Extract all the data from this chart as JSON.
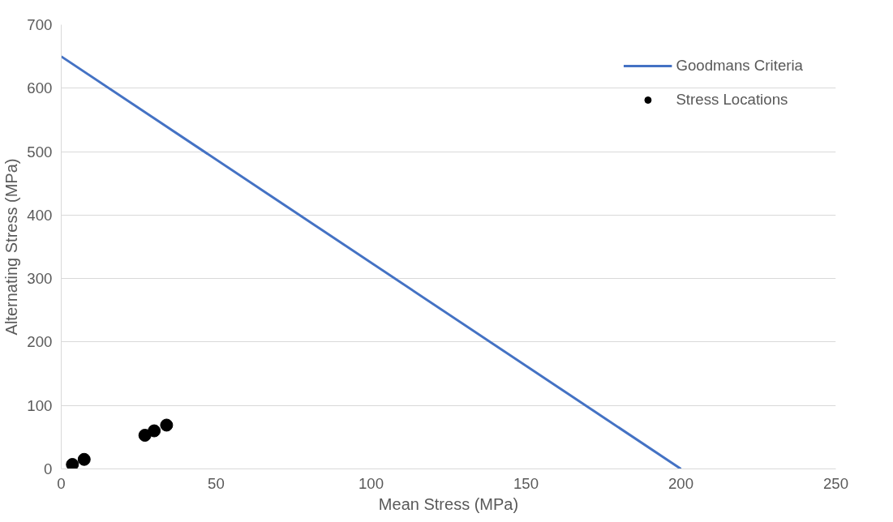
{
  "chart_data": {
    "type": "scatter",
    "xlabel": "Mean Stress (MPa)",
    "ylabel": "Alternating Stress (MPa)",
    "xlim": [
      0,
      250
    ],
    "xticks": [
      0,
      50,
      100,
      150,
      200,
      250
    ],
    "ylim": [
      0,
      700
    ],
    "yticks": [
      0,
      100,
      200,
      300,
      400,
      500,
      600,
      700
    ],
    "grid": "y",
    "legend": "top right",
    "series": [
      {
        "name": "Goodmans Criteria",
        "type": "line",
        "color": "#4472c4",
        "x": [
          0,
          200
        ],
        "values": [
          650,
          0
        ]
      },
      {
        "name": "Stress Locations",
        "color": "#000000",
        "marker": "circle",
        "x": [
          3.6,
          7.4,
          27,
          30,
          34
        ],
        "values": [
          7,
          15,
          53,
          60,
          69
        ]
      }
    ]
  }
}
